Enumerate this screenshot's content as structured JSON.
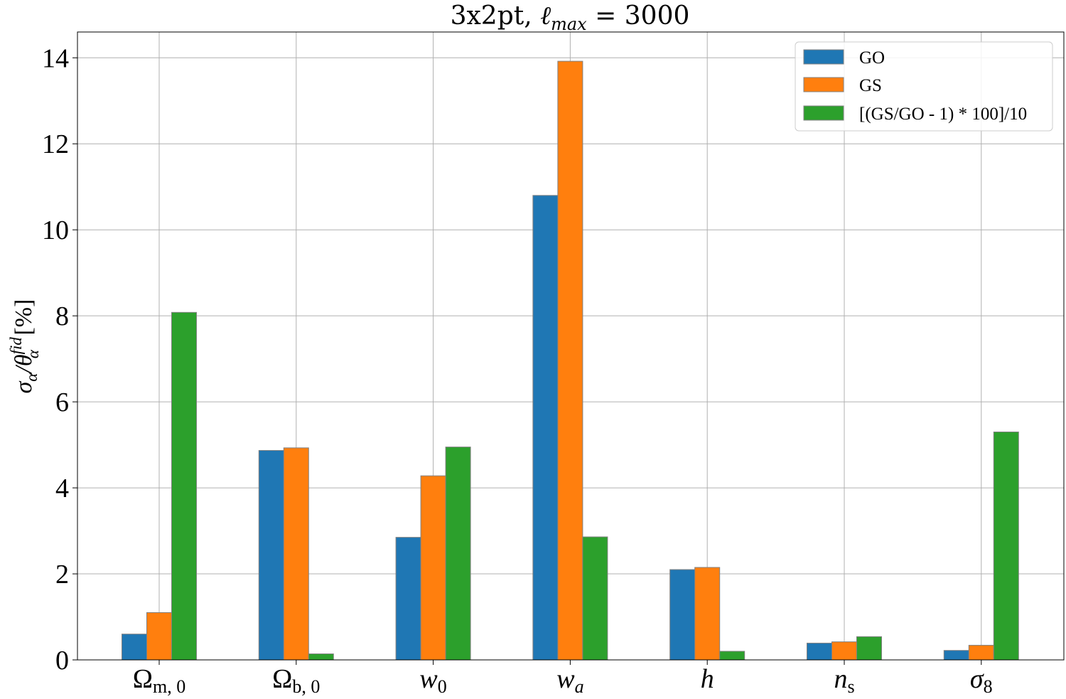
{
  "chart_data": {
    "type": "bar",
    "title": "3x2pt, ℓmax = 3000",
    "title_parts": {
      "prefix": "3x2pt, ",
      "ell": "ℓ",
      "sub": "max",
      "suffix": " = 3000"
    },
    "ylabel": "σα/θαfid [%]",
    "ylabel_parts": {
      "sigma": "σ",
      "sigma_sub": "α",
      "theta": "/θ",
      "theta_sup": "fid",
      "theta_sub": "α",
      "unit": " [%]"
    },
    "categories": [
      "Ωm,0",
      "Ωb,0",
      "w0",
      "wa",
      "h",
      "ns",
      "σ8"
    ],
    "category_parts": [
      {
        "main": "Ω",
        "sub": "m, 0",
        "italic": false
      },
      {
        "main": "Ω",
        "sub": "b, 0",
        "italic": false
      },
      {
        "main": "w",
        "sub": "0",
        "italic": true
      },
      {
        "main": "w",
        "sub": "a",
        "italic": true
      },
      {
        "main": "h",
        "sub": "",
        "italic": true
      },
      {
        "main": "n",
        "sub": "s",
        "italic": true
      },
      {
        "main": "σ",
        "sub": "8",
        "italic": true
      }
    ],
    "series": [
      {
        "name": "GO",
        "color": "#1f77b4",
        "values": [
          0.6,
          4.87,
          2.85,
          10.8,
          2.1,
          0.39,
          0.22
        ]
      },
      {
        "name": "GS",
        "color": "#ff7f0e",
        "values": [
          1.1,
          4.93,
          4.28,
          13.92,
          2.15,
          0.42,
          0.34
        ]
      },
      {
        "name": "[(GS/GO - 1) * 100]/10",
        "color": "#2ca02c",
        "values": [
          8.08,
          0.14,
          4.95,
          2.86,
          0.2,
          0.54,
          5.3
        ]
      }
    ],
    "yticks": [
      "0",
      "2",
      "4",
      "6",
      "8",
      "10",
      "12",
      "14"
    ],
    "ylim": [
      0,
      14.6
    ],
    "grid": true,
    "legend_position": "top-right"
  }
}
